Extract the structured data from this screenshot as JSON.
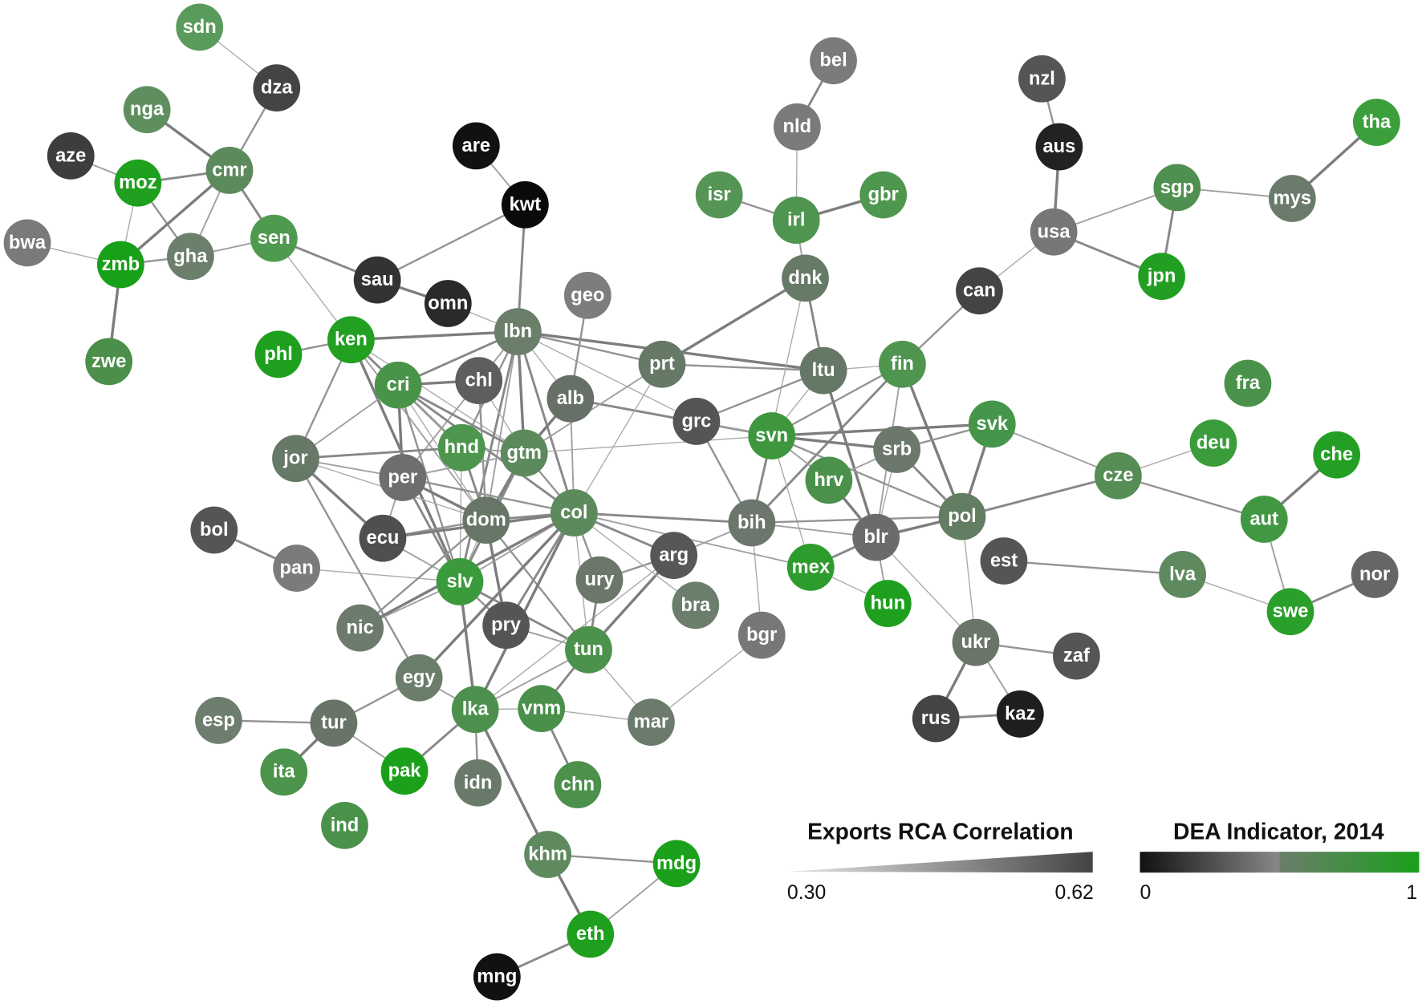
{
  "nodes": [
    {
      "label": "sdn",
      "color": "#5a9a5a"
    },
    {
      "label": "dza",
      "color": "#444444"
    },
    {
      "label": "nga",
      "color": "#5f8f5f"
    },
    {
      "label": "aze",
      "color": "#3d3d3d"
    },
    {
      "label": "moz",
      "color": "#1fa01f"
    },
    {
      "label": "cmr",
      "color": "#5c8a5c"
    },
    {
      "label": "bwa",
      "color": "#7a7a7a"
    },
    {
      "label": "zmb",
      "color": "#19a019"
    },
    {
      "label": "gha",
      "color": "#6c7f6c"
    },
    {
      "label": "sen",
      "color": "#4f9a4f"
    },
    {
      "label": "zwe",
      "color": "#4b8f4b"
    },
    {
      "label": "are",
      "color": "#111111"
    },
    {
      "label": "kwt",
      "color": "#0a0a0a"
    },
    {
      "label": "sau",
      "color": "#333333"
    },
    {
      "label": "omn",
      "color": "#2a2a2a"
    },
    {
      "label": "ken",
      "color": "#22a022"
    },
    {
      "label": "phl",
      "color": "#1ea01e"
    },
    {
      "label": "lbn",
      "color": "#6a7e6a"
    },
    {
      "label": "geo",
      "color": "#7d7d7d"
    },
    {
      "label": "cri",
      "color": "#4a944a"
    },
    {
      "label": "chl",
      "color": "#5e5e5e"
    },
    {
      "label": "alb",
      "color": "#667066"
    },
    {
      "label": "prt",
      "color": "#667866"
    },
    {
      "label": "bel",
      "color": "#7b7b7b"
    },
    {
      "label": "nld",
      "color": "#7a7a7a"
    },
    {
      "label": "isr",
      "color": "#559555"
    },
    {
      "label": "irl",
      "color": "#4f944f"
    },
    {
      "label": "gbr",
      "color": "#4f974f"
    },
    {
      "label": "dnk",
      "color": "#677a67"
    },
    {
      "label": "nzl",
      "color": "#555555"
    },
    {
      "label": "aus",
      "color": "#222222"
    },
    {
      "label": "usa",
      "color": "#777777"
    },
    {
      "label": "can",
      "color": "#444444"
    },
    {
      "label": "tha",
      "color": "#3b9f3b"
    },
    {
      "label": "sgp",
      "color": "#4f8f4f"
    },
    {
      "label": "mys",
      "color": "#6b7b6b"
    },
    {
      "label": "jpn",
      "color": "#229f22"
    },
    {
      "label": "fin",
      "color": "#4f954f"
    },
    {
      "label": "ltu",
      "color": "#657865"
    },
    {
      "label": "jor",
      "color": "#667866"
    },
    {
      "label": "hnd",
      "color": "#4e954e"
    },
    {
      "label": "gtm",
      "color": "#5d8a5d"
    },
    {
      "label": "per",
      "color": "#6e6e6e"
    },
    {
      "label": "grc",
      "color": "#555555"
    },
    {
      "label": "svn",
      "color": "#3e963e"
    },
    {
      "label": "srb",
      "color": "#6d786d"
    },
    {
      "label": "svk",
      "color": "#45964a"
    },
    {
      "label": "fra",
      "color": "#4a924a"
    },
    {
      "label": "deu",
      "color": "#3b9c3b"
    },
    {
      "label": "che",
      "color": "#23a023"
    },
    {
      "label": "cze",
      "color": "#558d55"
    },
    {
      "label": "hrv",
      "color": "#4b914b"
    },
    {
      "label": "bol",
      "color": "#555555"
    },
    {
      "label": "ecu",
      "color": "#4f4f4f"
    },
    {
      "label": "dom",
      "color": "#677667"
    },
    {
      "label": "col",
      "color": "#5d8a5d"
    },
    {
      "label": "bih",
      "color": "#6c766c"
    },
    {
      "label": "blr",
      "color": "#6b6b6b"
    },
    {
      "label": "pol",
      "color": "#637d63"
    },
    {
      "label": "aut",
      "color": "#429842"
    },
    {
      "label": "pan",
      "color": "#7b7b7b"
    },
    {
      "label": "slv",
      "color": "#3b9a3b"
    },
    {
      "label": "arg",
      "color": "#575757"
    },
    {
      "label": "ury",
      "color": "#6a776a"
    },
    {
      "label": "mex",
      "color": "#2d9c2d"
    },
    {
      "label": "est",
      "color": "#555555"
    },
    {
      "label": "lva",
      "color": "#5f8a5f"
    },
    {
      "label": "nor",
      "color": "#666666"
    },
    {
      "label": "swe",
      "color": "#2aa02a"
    },
    {
      "label": "nic",
      "color": "#6d7b6d"
    },
    {
      "label": "pry",
      "color": "#555555"
    },
    {
      "label": "bra",
      "color": "#6b7d6b"
    },
    {
      "label": "bgr",
      "color": "#777777"
    },
    {
      "label": "hun",
      "color": "#1ea01e"
    },
    {
      "label": "ukr",
      "color": "#687568"
    },
    {
      "label": "zaf",
      "color": "#555555"
    },
    {
      "label": "egy",
      "color": "#6b7d6b"
    },
    {
      "label": "tun",
      "color": "#4c914c"
    },
    {
      "label": "esp",
      "color": "#6e7e6e"
    },
    {
      "label": "tur",
      "color": "#677467"
    },
    {
      "label": "lka",
      "color": "#4d904d"
    },
    {
      "label": "vnm",
      "color": "#4a8f4a"
    },
    {
      "label": "mar",
      "color": "#6b7a6b"
    },
    {
      "label": "rus",
      "color": "#444444"
    },
    {
      "label": "kaz",
      "color": "#1e1e1e"
    },
    {
      "label": "ita",
      "color": "#4c944c"
    },
    {
      "label": "pak",
      "color": "#1aa01a"
    },
    {
      "label": "idn",
      "color": "#6a7a6a"
    },
    {
      "label": "chn",
      "color": "#4c904c"
    },
    {
      "label": "ind",
      "color": "#4a914a"
    },
    {
      "label": "khm",
      "color": "#5e8a5e"
    },
    {
      "label": "mdg",
      "color": "#1aa01a"
    },
    {
      "label": "eth",
      "color": "#1ea01e"
    },
    {
      "label": "mng",
      "color": "#111111"
    }
  ],
  "legend": {
    "correlation": {
      "title": "Exports RCA Correlation",
      "min": "0.30",
      "max": "0.62"
    },
    "indicator": {
      "title": "DEA Indicator, 2014",
      "min": "0",
      "max": "1"
    }
  }
}
